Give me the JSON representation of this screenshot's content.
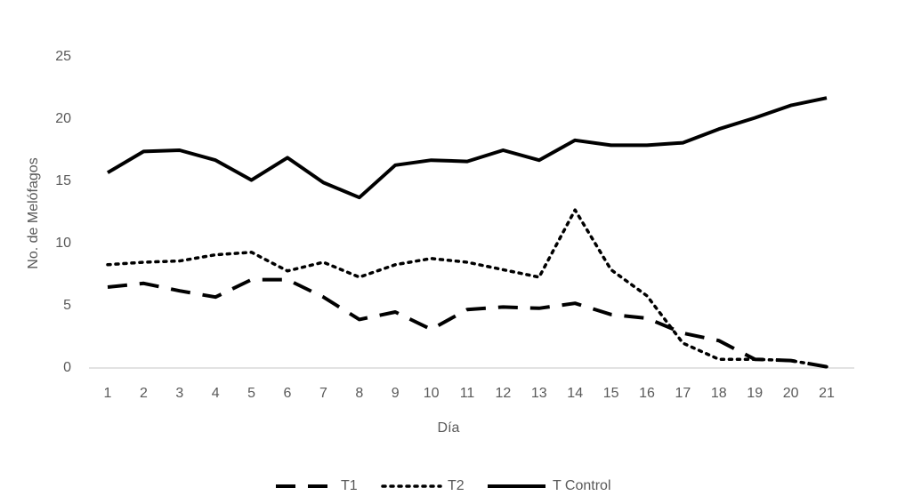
{
  "chart_data": {
    "type": "line",
    "x_label": "Día",
    "y_label": "No. de Melófagos",
    "categories": [
      "1",
      "2",
      "3",
      "4",
      "5",
      "6",
      "7",
      "8",
      "9",
      "10",
      "11",
      "12",
      "13",
      "14",
      "15",
      "16",
      "17",
      "18",
      "19",
      "20",
      "21"
    ],
    "series": [
      {
        "name": "T1",
        "color": "#000000",
        "style": "dashed",
        "values": [
          6.5,
          6.8,
          6.2,
          5.7,
          7.1,
          7.1,
          5.7,
          3.9,
          4.5,
          3.1,
          4.7,
          4.9,
          4.8,
          5.2,
          4.3,
          4.0,
          2.8,
          2.2,
          0.7,
          0.6,
          0.1
        ]
      },
      {
        "name": "T2",
        "color": "#000000",
        "style": "dotted",
        "values": [
          8.3,
          8.5,
          8.6,
          9.1,
          9.3,
          7.8,
          8.5,
          7.3,
          8.3,
          8.8,
          8.5,
          7.9,
          7.3,
          12.7,
          7.9,
          5.8,
          2.0,
          0.7,
          0.7,
          0.6,
          0.1
        ]
      },
      {
        "name": "T Control",
        "color": "#000000",
        "style": "solid",
        "values": [
          15.7,
          17.4,
          17.5,
          16.7,
          15.1,
          16.9,
          14.9,
          13.7,
          16.3,
          16.7,
          16.6,
          17.5,
          16.7,
          18.3,
          17.9,
          17.9,
          18.1,
          19.2,
          20.1,
          21.1,
          21.7
        ]
      }
    ],
    "ylim": [
      0,
      25
    ],
    "yticks": [
      0,
      5,
      10,
      15,
      20,
      25
    ],
    "grid": false,
    "legend": "bottom"
  }
}
